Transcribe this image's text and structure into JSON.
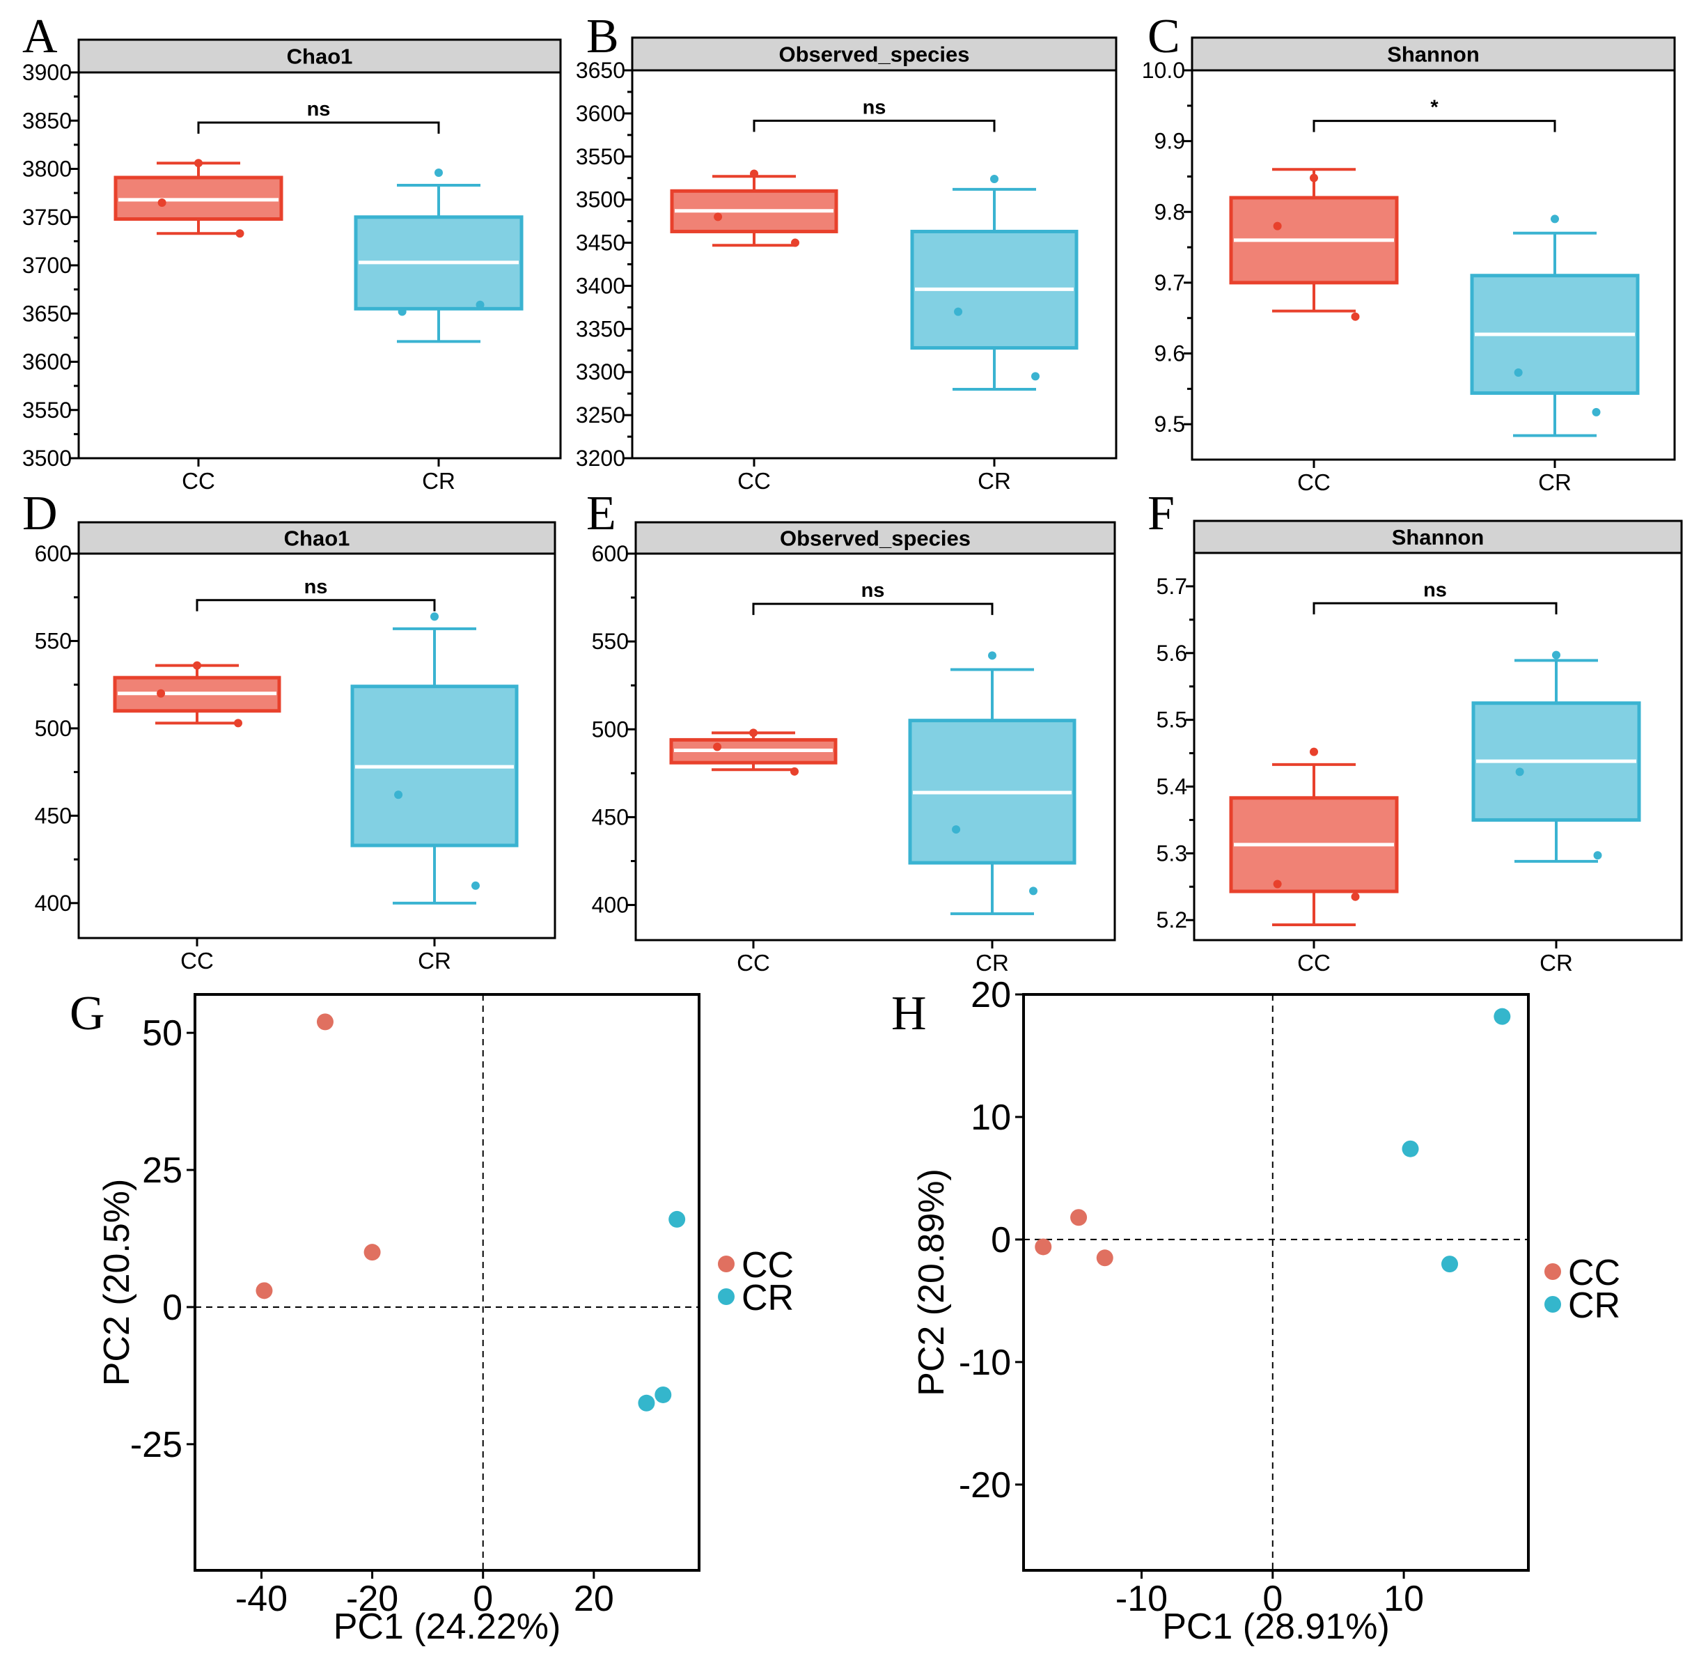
{
  "colors": {
    "cc_fill": "#f08275",
    "cc_edge": "#e8412c",
    "cr_fill": "#82d0e3",
    "cr_edge": "#3ab3d1",
    "pca_cc": "#e07060",
    "pca_cr": "#34b6cc",
    "strip": "#d3d3d3"
  },
  "chart_data": [
    {
      "type": "box",
      "panel": "A",
      "title": "Chao1",
      "categories": [
        "CC",
        "CR"
      ],
      "ylim": [
        3500,
        3900
      ],
      "yticks": [
        "3500",
        "3550",
        "3600",
        "3650",
        "3700",
        "3750",
        "3800",
        "3850",
        "3900"
      ],
      "ytick_values": [
        3500,
        3550,
        3600,
        3650,
        3700,
        3750,
        3800,
        3850,
        3900
      ],
      "boxes": [
        {
          "name": "CC",
          "whisker_low": 3733,
          "q1": 3748,
          "median": 3768,
          "q3": 3791,
          "whisker_high": 3806,
          "points": [
            3806,
            3765,
            3733
          ]
        },
        {
          "name": "CR",
          "whisker_low": 3621,
          "q1": 3655,
          "median": 3703,
          "q3": 3750,
          "whisker_high": 3783,
          "points": [
            3796,
            3652,
            3659
          ]
        }
      ],
      "significance": "ns"
    },
    {
      "type": "box",
      "panel": "B",
      "title": "Observed_species",
      "categories": [
        "CC",
        "CR"
      ],
      "ylim": [
        3200,
        3650
      ],
      "yticks": [
        "3200",
        "3250",
        "3300",
        "3350",
        "3400",
        "3450",
        "3500",
        "3550",
        "3600",
        "3650"
      ],
      "ytick_values": [
        3200,
        3250,
        3300,
        3350,
        3400,
        3450,
        3500,
        3550,
        3600,
        3650
      ],
      "boxes": [
        {
          "name": "CC",
          "whisker_low": 3447,
          "q1": 3463,
          "median": 3487,
          "q3": 3510,
          "whisker_high": 3527,
          "points": [
            3530,
            3480,
            3450
          ]
        },
        {
          "name": "CR",
          "whisker_low": 3280,
          "q1": 3328,
          "median": 3396,
          "q3": 3463,
          "whisker_high": 3512,
          "points": [
            3524,
            3370,
            3295
          ]
        }
      ],
      "significance": "ns"
    },
    {
      "type": "box",
      "panel": "C",
      "title": "Shannon",
      "categories": [
        "CC",
        "CR"
      ],
      "ylim": [
        9.45,
        10.0
      ],
      "yticks": [
        "9.5",
        "9.6",
        "9.7",
        "9.8",
        "9.9",
        "10.0"
      ],
      "ytick_values": [
        9.5,
        9.6,
        9.7,
        9.8,
        9.9,
        10.0
      ],
      "boxes": [
        {
          "name": "CC",
          "whisker_low": 9.66,
          "q1": 9.7,
          "median": 9.76,
          "q3": 9.82,
          "whisker_high": 9.86,
          "points": [
            9.848,
            9.78,
            9.652
          ]
        },
        {
          "name": "CR",
          "whisker_low": 9.484,
          "q1": 9.544,
          "median": 9.627,
          "q3": 9.71,
          "whisker_high": 9.77,
          "points": [
            9.79,
            9.573,
            9.517
          ]
        }
      ],
      "significance": "*"
    },
    {
      "type": "box",
      "panel": "D",
      "title": "Chao1",
      "categories": [
        "CC",
        "CR"
      ],
      "ylim": [
        380,
        600
      ],
      "yticks": [
        "400",
        "450",
        "500",
        "550",
        "600"
      ],
      "ytick_values": [
        400,
        450,
        500,
        550,
        600
      ],
      "boxes": [
        {
          "name": "CC",
          "whisker_low": 503,
          "q1": 510,
          "median": 520,
          "q3": 529,
          "whisker_high": 536,
          "points": [
            536,
            520,
            503
          ]
        },
        {
          "name": "CR",
          "whisker_low": 400,
          "q1": 433,
          "median": 478,
          "q3": 524,
          "whisker_high": 557,
          "points": [
            564,
            462,
            410
          ]
        }
      ],
      "significance": "ns"
    },
    {
      "type": "box",
      "panel": "E",
      "title": "Observed_species",
      "categories": [
        "CC",
        "CR"
      ],
      "ylim": [
        380,
        600
      ],
      "yticks": [
        "400",
        "450",
        "500",
        "550",
        "600"
      ],
      "ytick_values": [
        400,
        450,
        500,
        550,
        600
      ],
      "boxes": [
        {
          "name": "CC",
          "whisker_low": 477,
          "q1": 481,
          "median": 488,
          "q3": 494,
          "whisker_high": 498,
          "points": [
            498,
            490,
            476
          ]
        },
        {
          "name": "CR",
          "whisker_low": 395,
          "q1": 424,
          "median": 464,
          "q3": 505,
          "whisker_high": 534,
          "points": [
            542,
            443,
            408
          ]
        }
      ],
      "significance": "ns"
    },
    {
      "type": "box",
      "panel": "F",
      "title": "Shannon",
      "categories": [
        "CC",
        "CR"
      ],
      "ylim": [
        5.17,
        5.75
      ],
      "yticks": [
        "5.2",
        "5.3",
        "5.4",
        "5.5",
        "5.6",
        "5.7"
      ],
      "ytick_values": [
        5.2,
        5.3,
        5.4,
        5.5,
        5.6,
        5.7
      ],
      "boxes": [
        {
          "name": "CC",
          "whisker_low": 5.193,
          "q1": 5.243,
          "median": 5.313,
          "q3": 5.383,
          "whisker_high": 5.433,
          "points": [
            5.452,
            5.254,
            5.235
          ]
        },
        {
          "name": "CR",
          "whisker_low": 5.288,
          "q1": 5.35,
          "median": 5.438,
          "q3": 5.525,
          "whisker_high": 5.589,
          "points": [
            5.597,
            5.422,
            5.297
          ]
        }
      ],
      "significance": "ns"
    },
    {
      "type": "scatter",
      "panel": "G",
      "xlabel": "PC1 (24.22%)",
      "ylabel": "PC2 (20.5%)",
      "xlim": [
        -52,
        39
      ],
      "ylim": [
        -48,
        57
      ],
      "xticks": [
        "-40",
        "-20",
        "0",
        "20"
      ],
      "xtick_values": [
        -40,
        -20,
        0,
        20
      ],
      "yticks": [
        "-25",
        "0",
        "25",
        "50"
      ],
      "ytick_values": [
        -25,
        0,
        25,
        50
      ],
      "series": [
        {
          "name": "CC",
          "points": [
            [
              -28.5,
              52
            ],
            [
              -20,
              10
            ],
            [
              -39.5,
              3
            ]
          ]
        },
        {
          "name": "CR",
          "points": [
            [
              35,
              16
            ],
            [
              32.5,
              -16
            ],
            [
              29.5,
              -17.5
            ]
          ]
        }
      ],
      "legend": [
        "CC",
        "CR"
      ]
    },
    {
      "type": "scatter",
      "panel": "H",
      "xlabel": "PC1 (28.91%)",
      "ylabel": "PC2 (20.89%)",
      "xlim": [
        -19,
        19.5
      ],
      "ylim": [
        -27,
        20
      ],
      "xticks": [
        "-10",
        "0",
        "10"
      ],
      "xtick_values": [
        -10,
        0,
        10
      ],
      "yticks": [
        "-20",
        "-10",
        "0",
        "10",
        "20"
      ],
      "ytick_values": [
        -20,
        -10,
        0,
        10,
        20
      ],
      "series": [
        {
          "name": "CC",
          "points": [
            [
              -17.5,
              -0.6
            ],
            [
              -14.8,
              1.8
            ],
            [
              -12.8,
              -1.5
            ]
          ]
        },
        {
          "name": "CR",
          "points": [
            [
              17.5,
              18.2
            ],
            [
              10.5,
              7.4
            ],
            [
              13.5,
              -2
            ]
          ]
        }
      ],
      "legend": [
        "CC",
        "CR"
      ]
    }
  ]
}
